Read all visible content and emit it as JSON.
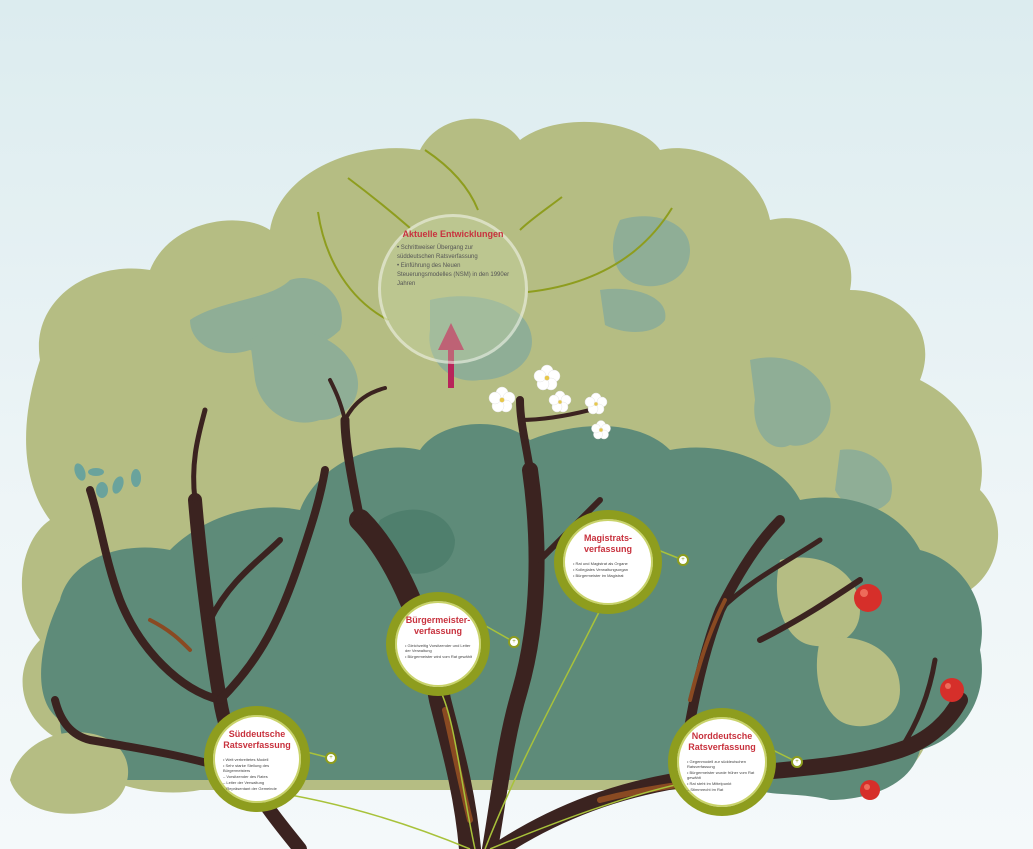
{
  "colors": {
    "foliage_light": "#b5bd83",
    "foliage_mid": "#8fae96",
    "foliage_dark": "#5e8b79",
    "trunk": "#3b2320",
    "bark_highlight": "#8a4a22",
    "node_ring": "#8e9d1e",
    "title_red": "#c8323e",
    "arrow": "#b8245a",
    "apple": "#d62f2a"
  },
  "top_node": {
    "title": "Aktuelle Entwicklungen",
    "bullets": [
      "Schrittweiser Übergang zur süddeutschen Ratsverfassung",
      "Einführung des Neuen Steuerungsmodelles (NSM) in den 1990er Jahren"
    ]
  },
  "nodes": {
    "sueddeutsche": {
      "title": "Süddeutsche\nRatsverfassung",
      "bullets": [
        "Weit verbreitetes Modell",
        "Sehr starke Stellung des Bürgermeisters"
      ],
      "sub": [
        "Vorsitzender des Rates",
        "Leiter der Verwaltung",
        "Repräsentant der Gemeinde"
      ]
    },
    "buergermeister": {
      "title": "Bürgermeister-\nverfassung",
      "bullets": [
        "Gleichzeitig Vorsitzender und Leiter der Verwaltung",
        "Bürgermeister wird vom Rat gewählt"
      ]
    },
    "magistrats": {
      "title": "Magistrats-\nverfassung",
      "bullets": [
        "Rat und Magistrat als Organe",
        "Kollegiales Verwaltungsorgan",
        "Bürgermeister im Magistrat"
      ]
    },
    "norddeutsche": {
      "title": "Norddeutsche\nRatsverfassung",
      "bullets": [
        "Gegenmodell zur süddeutschen Ratsverfassung",
        "Bürgermeister wurde früher vom Rat gewählt",
        "Rat steht im Mittelpunkt"
      ],
      "sub": [
        "Stimmrecht im Rat"
      ]
    }
  },
  "icons": {
    "arrow": "up-arrow-icon",
    "zoom": "zoom-circle-icon",
    "flower": "white-blossom-icon",
    "apple": "red-apple-icon",
    "leaf": "teal-leaf-icon"
  }
}
